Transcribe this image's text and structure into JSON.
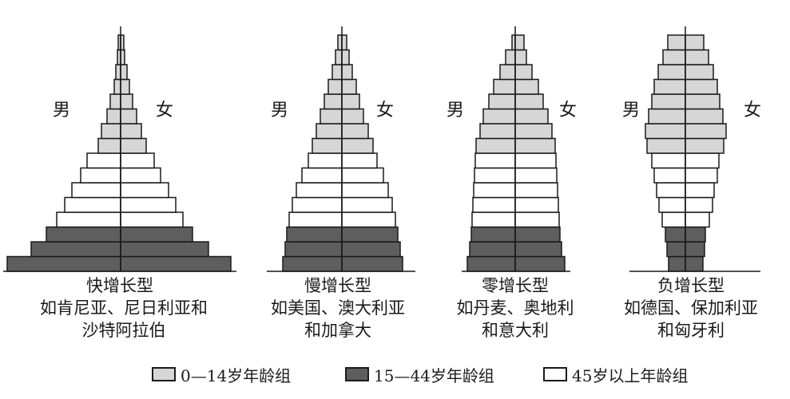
{
  "chart_data": [
    {
      "type": "bar",
      "subtype": "population-pyramid",
      "title": "快增长型",
      "examples": [
        "如肯尼亚、尼日利亚和",
        "沙特阿拉伯"
      ],
      "left_label": "男",
      "right_label": "女",
      "bars": [
        {
          "group": "15-44",
          "male": 142,
          "female": 138
        },
        {
          "group": "15-44",
          "male": 112,
          "female": 110
        },
        {
          "group": "15-44",
          "male": 93,
          "female": 90
        },
        {
          "group": "45+",
          "male": 80,
          "female": 78
        },
        {
          "group": "45+",
          "male": 70,
          "female": 69
        },
        {
          "group": "45+",
          "male": 61,
          "female": 60
        },
        {
          "group": "45+",
          "male": 50,
          "female": 50
        },
        {
          "group": "45+",
          "male": 42,
          "female": 42
        },
        {
          "group": "0-14",
          "male": 28,
          "female": 32
        },
        {
          "group": "0-14",
          "male": 24,
          "female": 26
        },
        {
          "group": "0-14",
          "male": 17,
          "female": 20
        },
        {
          "group": "0-14",
          "male": 13,
          "female": 15
        },
        {
          "group": "0-14",
          "male": 8,
          "female": 11
        },
        {
          "group": "0-14",
          "male": 6,
          "female": 8
        },
        {
          "group": "0-14",
          "male": 4,
          "female": 5
        },
        {
          "group": "0-14",
          "male": 3,
          "female": 4
        }
      ]
    },
    {
      "type": "bar",
      "subtype": "population-pyramid",
      "title": "慢增长型",
      "examples": [
        "如美国、澳大利亚",
        "和加拿大"
      ],
      "left_label": "男",
      "right_label": "女",
      "bars": [
        {
          "group": "15-44",
          "male": 74,
          "female": 76
        },
        {
          "group": "15-44",
          "male": 71,
          "female": 73
        },
        {
          "group": "15-44",
          "male": 69,
          "female": 70
        },
        {
          "group": "45+",
          "male": 66,
          "female": 67
        },
        {
          "group": "45+",
          "male": 62,
          "female": 63
        },
        {
          "group": "45+",
          "male": 57,
          "female": 58
        },
        {
          "group": "45+",
          "male": 50,
          "female": 52
        },
        {
          "group": "45+",
          "male": 42,
          "female": 44
        },
        {
          "group": "0-14",
          "male": 37,
          "female": 39
        },
        {
          "group": "0-14",
          "male": 32,
          "female": 33
        },
        {
          "group": "0-14",
          "male": 27,
          "female": 27
        },
        {
          "group": "0-14",
          "male": 22,
          "female": 22
        },
        {
          "group": "0-14",
          "male": 17,
          "female": 18
        },
        {
          "group": "0-14",
          "male": 12,
          "female": 13
        },
        {
          "group": "0-14",
          "male": 8,
          "female": 9
        },
        {
          "group": "0-14",
          "male": 5,
          "female": 6
        }
      ]
    },
    {
      "type": "bar",
      "subtype": "population-pyramid",
      "title": "零增长型",
      "examples": [
        "如丹麦、奥地利",
        "和意大利"
      ],
      "left_label": "男",
      "right_label": "女",
      "bars": [
        {
          "group": "15-44",
          "male": 60,
          "female": 62
        },
        {
          "group": "15-44",
          "male": 57,
          "female": 58
        },
        {
          "group": "15-44",
          "male": 55,
          "female": 56
        },
        {
          "group": "45+",
          "male": 54,
          "female": 55
        },
        {
          "group": "45+",
          "male": 53,
          "female": 54
        },
        {
          "group": "45+",
          "male": 52,
          "female": 53
        },
        {
          "group": "45+",
          "male": 51,
          "female": 52
        },
        {
          "group": "45+",
          "male": 50,
          "female": 51
        },
        {
          "group": "0-14",
          "male": 49,
          "female": 50
        },
        {
          "group": "0-14",
          "male": 44,
          "female": 46
        },
        {
          "group": "0-14",
          "male": 40,
          "female": 41
        },
        {
          "group": "0-14",
          "male": 33,
          "female": 35
        },
        {
          "group": "0-14",
          "male": 27,
          "female": 29
        },
        {
          "group": "0-14",
          "male": 19,
          "female": 21
        },
        {
          "group": "0-14",
          "male": 12,
          "female": 14
        },
        {
          "group": "0-14",
          "male": 4,
          "female": 11
        }
      ]
    },
    {
      "type": "bar",
      "subtype": "population-pyramid",
      "title": "负增长型",
      "examples": [
        "如德国、保加利亚",
        "和匈牙利"
      ],
      "left_label": "男",
      "right_label": "女",
      "bars": [
        {
          "group": "15-44",
          "male": 21,
          "female": 22
        },
        {
          "group": "15-44",
          "male": 23,
          "female": 24
        },
        {
          "group": "15-44",
          "male": 25,
          "female": 25
        },
        {
          "group": "45+",
          "male": 29,
          "female": 30
        },
        {
          "group": "45+",
          "male": 33,
          "female": 34
        },
        {
          "group": "45+",
          "male": 36,
          "female": 36
        },
        {
          "group": "45+",
          "male": 39,
          "female": 40
        },
        {
          "group": "45+",
          "male": 42,
          "female": 42
        },
        {
          "group": "0-14",
          "male": 48,
          "female": 48
        },
        {
          "group": "0-14",
          "male": 50,
          "female": 51
        },
        {
          "group": "0-14",
          "male": 46,
          "female": 47
        },
        {
          "group": "0-14",
          "male": 42,
          "female": 43
        },
        {
          "group": "0-14",
          "male": 39,
          "female": 40
        },
        {
          "group": "0-14",
          "male": 34,
          "female": 35
        },
        {
          "group": "0-14",
          "male": 28,
          "female": 29
        },
        {
          "group": "0-14",
          "male": 22,
          "female": 23
        }
      ]
    }
  ],
  "legend": [
    {
      "group": "0-14",
      "label": "0—14岁年龄组",
      "color": "#d6d6d6"
    },
    {
      "group": "15-44",
      "label": "15—44岁年龄组",
      "color": "#5e5e5e"
    },
    {
      "group": "45+",
      "label": "45岁以上年龄组",
      "color": "#ffffff"
    }
  ],
  "colors": {
    "stroke": "#1a1a1a",
    "axis": "#1a1a1a"
  }
}
